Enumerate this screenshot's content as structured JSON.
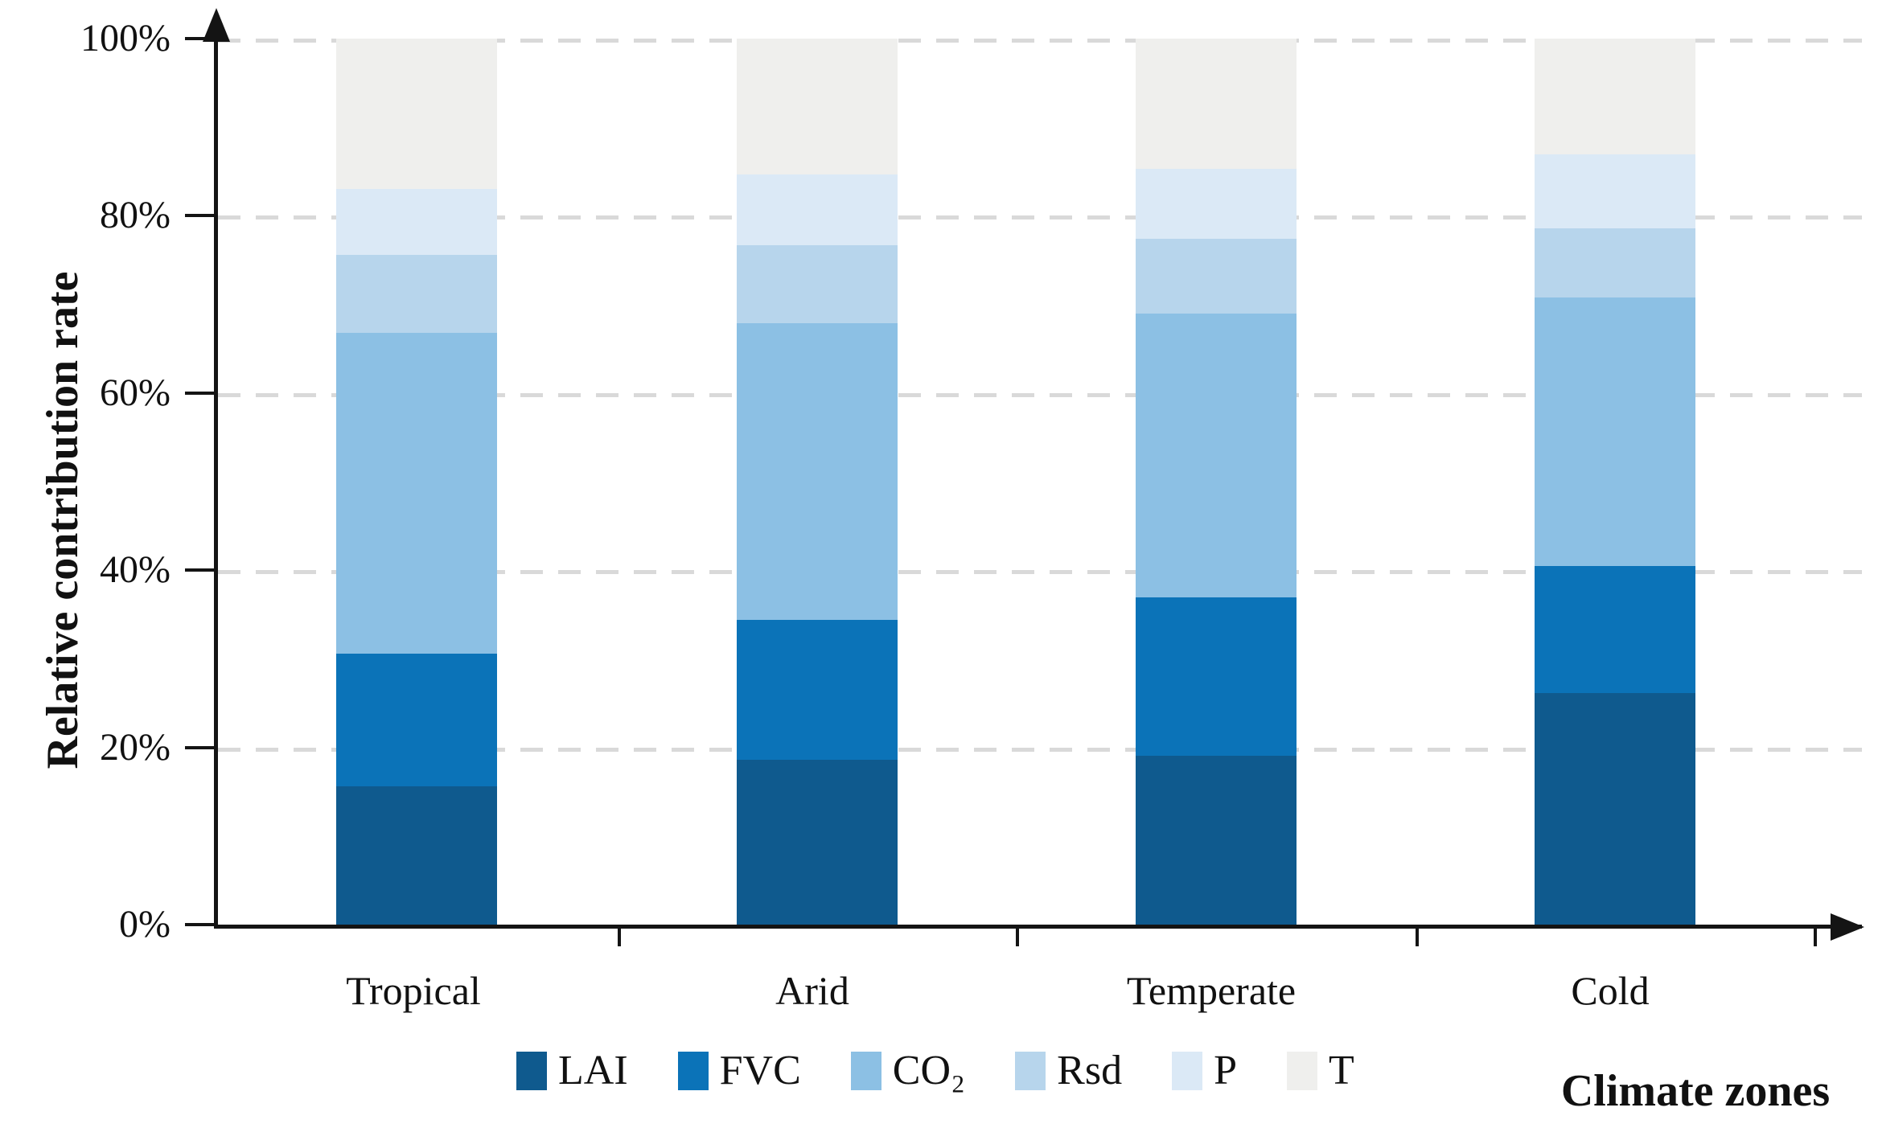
{
  "figure": {
    "y_axis_title": "Relative contribution rate",
    "x_axis_title": "Climate zones"
  },
  "chart_data": {
    "type": "bar",
    "stacked": true,
    "percent_stacked": true,
    "title": "",
    "xlabel": "Climate zones",
    "ylabel": "Relative contribution rate",
    "categories": [
      "Tropical",
      "Arid",
      "Temperate",
      "Cold"
    ],
    "series": [
      {
        "name": "LAI",
        "color": "#0f5a8e",
        "values": [
          15.6,
          18.6,
          19.1,
          26.1
        ]
      },
      {
        "name": "FVC",
        "color": "#0b73b8",
        "values": [
          15.0,
          15.8,
          17.8,
          14.4
        ]
      },
      {
        "name": "CO₂",
        "color": "#8cc0e4",
        "values": [
          36.2,
          33.5,
          32.1,
          30.3
        ]
      },
      {
        "name": "Rsd",
        "color": "#b7d5ec",
        "values": [
          8.8,
          8.8,
          8.4,
          7.8
        ]
      },
      {
        "name": "P",
        "color": "#dbe9f6",
        "values": [
          7.4,
          8.0,
          7.9,
          8.3
        ]
      },
      {
        "name": "T",
        "color": "#efefed",
        "values": [
          17.0,
          15.3,
          14.7,
          13.1
        ]
      }
    ],
    "y_ticks": [
      "0%",
      "20%",
      "40%",
      "60%",
      "80%",
      "100%"
    ],
    "ylim": [
      0,
      100
    ],
    "grid": "horizontal-dashed",
    "gridline_color": "#d9d9d9",
    "axis_color": "#141414",
    "legend_position": "bottom"
  }
}
